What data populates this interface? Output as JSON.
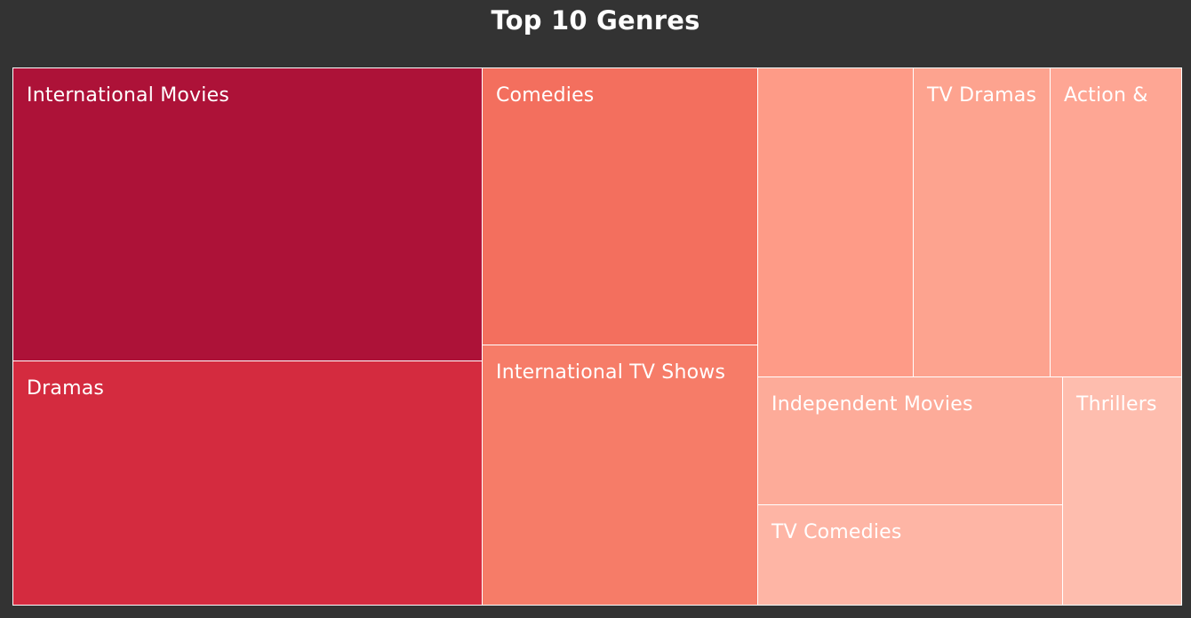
{
  "chart_data": {
    "type": "treemap",
    "title": "Top 10 Genres",
    "tiles": [
      {
        "id": "international-movies",
        "label": "International Movies",
        "display_label": "International Movies",
        "color": "#ad1238"
      },
      {
        "id": "dramas",
        "label": "Dramas",
        "display_label": "Dramas",
        "color": "#d42b3f"
      },
      {
        "id": "comedies",
        "label": "Comedies",
        "display_label": "Comedies",
        "color": "#f36f5e"
      },
      {
        "id": "international-tv-shows",
        "label": "International TV Shows",
        "display_label": "International TV Shows",
        "color": "#f67c68"
      },
      {
        "id": "unlabeled-genre",
        "label": "",
        "display_label": "",
        "color": "#fe9b87"
      },
      {
        "id": "tv-dramas",
        "label": "TV Dramas",
        "display_label": "TV Dramas",
        "color": "#fda38f"
      },
      {
        "id": "action",
        "label": "Action &",
        "display_label": "Action &",
        "color": "#fea694"
      },
      {
        "id": "independent-movies",
        "label": "Independent Movies",
        "display_label": "Independent Movies",
        "color": "#fdab99"
      },
      {
        "id": "tv-comedies",
        "label": "TV Comedies",
        "display_label": "TV Comedies",
        "color": "#feb5a5"
      },
      {
        "id": "thrillers",
        "label": "Thrillers",
        "display_label": "Thrillers",
        "color": "#febdae"
      }
    ]
  }
}
